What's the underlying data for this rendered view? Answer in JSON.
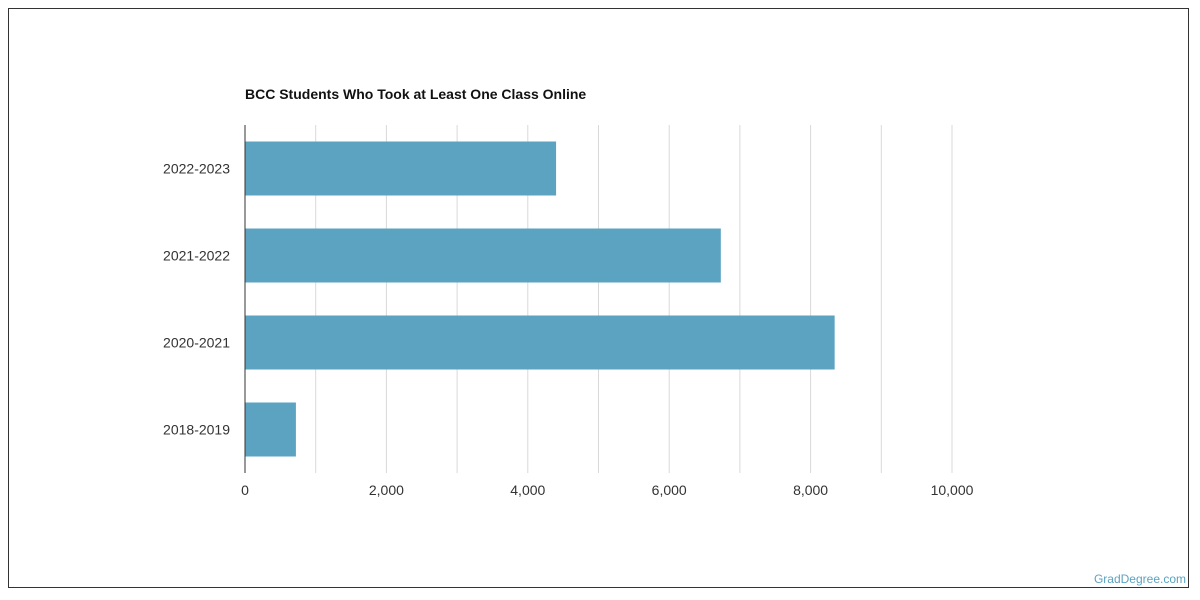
{
  "watermark": "GradDegree.com",
  "colors": {
    "bar": "#5ba3c0",
    "grid": "#d9d9d9",
    "axis": "#333333"
  },
  "chart_data": {
    "type": "bar",
    "orientation": "horizontal",
    "title": "BCC Students Who Took at Least One Class Online",
    "xlabel": "",
    "ylabel": "",
    "categories": [
      "2022-2023",
      "2021-2022",
      "2020-2021",
      "2018-2019"
    ],
    "values": [
      4400,
      6730,
      8340,
      720
    ],
    "xlim": [
      0,
      10000
    ],
    "xticks": [
      0,
      2000,
      4000,
      6000,
      8000,
      10000
    ],
    "xtick_labels": [
      "0",
      "2,000",
      "4,000",
      "6,000",
      "8,000",
      "10,000"
    ],
    "grid": true,
    "legend": "none"
  }
}
